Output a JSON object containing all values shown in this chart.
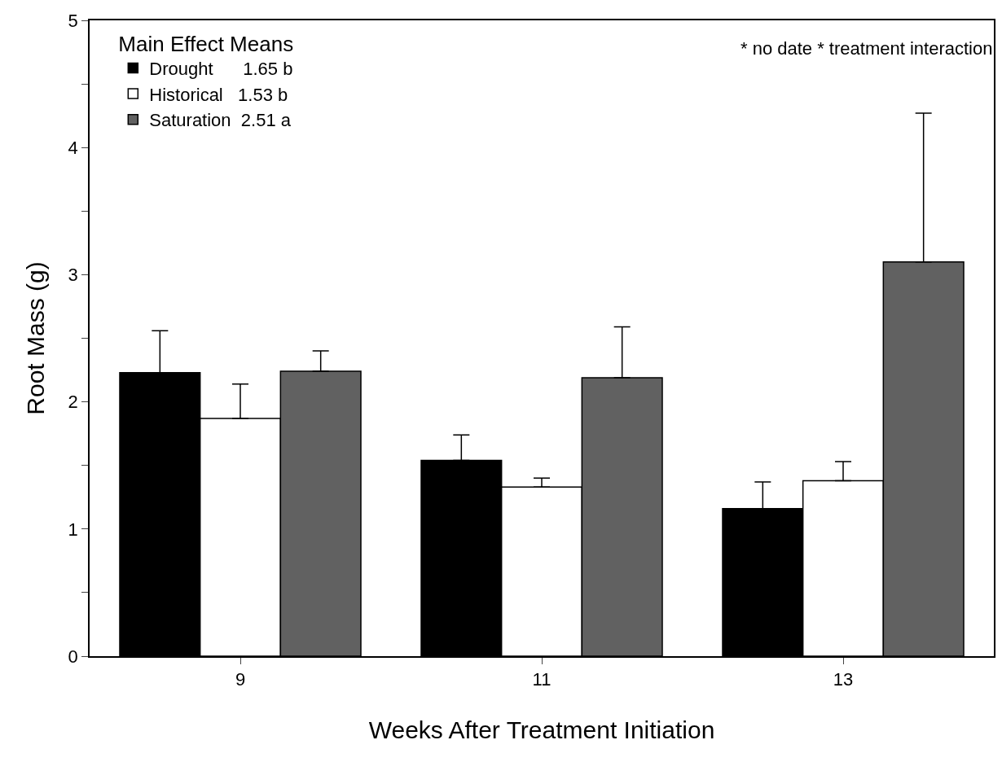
{
  "chart_data": {
    "type": "bar",
    "xlabel": "Weeks After Treatment Initiation",
    "ylabel": "Root Mass (g)",
    "legend_title": "Main Effect Means",
    "legend": "top left",
    "categories": [
      "9",
      "11",
      "13"
    ],
    "series": [
      {
        "name": "Drought      1.65 b",
        "color": "#000000",
        "values": [
          2.23,
          1.54,
          1.16
        ],
        "errors": [
          [
            2.23,
            2.56
          ],
          [
            1.54,
            1.74
          ],
          [
            1.16,
            1.37
          ]
        ]
      },
      {
        "name": "Historical   1.53 b",
        "color": "#ffffff",
        "values": [
          1.87,
          1.33,
          1.38
        ],
        "errors": [
          [
            1.87,
            2.14
          ],
          [
            1.33,
            1.4
          ],
          [
            1.38,
            1.53
          ]
        ]
      },
      {
        "name": "Saturation  2.51 a",
        "color": "#616161",
        "values": [
          2.24,
          2.19,
          3.1
        ],
        "errors": [
          [
            2.24,
            2.4
          ],
          [
            2.19,
            2.59
          ],
          [
            3.1,
            4.27
          ]
        ]
      }
    ],
    "ylim": [
      0,
      5
    ],
    "yticks": [
      0,
      {
        "value": 0.5,
        "label": null
      },
      1,
      {
        "value": 1.5,
        "label": null
      },
      2,
      {
        "value": 2.5,
        "label": null
      },
      3,
      {
        "value": 3.5,
        "label": null
      },
      4,
      {
        "value": 4.5,
        "label": null
      },
      5
    ],
    "annotations": [
      "* no date * treatment interaction"
    ]
  }
}
